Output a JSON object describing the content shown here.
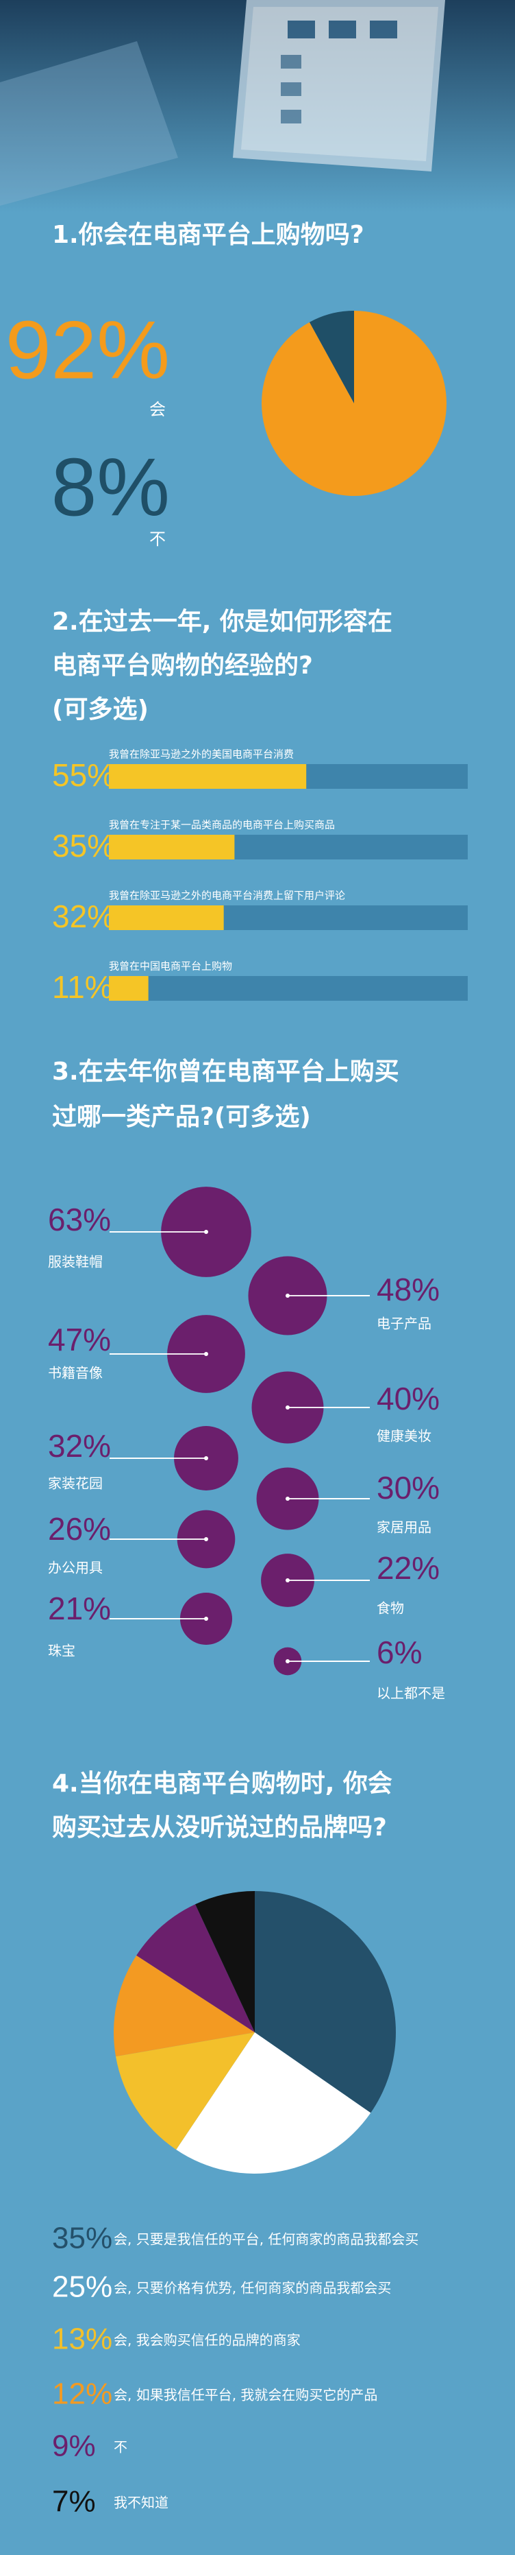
{
  "chart_data": [
    {
      "type": "pie",
      "title": "1.你会在电商平台上购物吗?",
      "categories": [
        "会",
        "不"
      ],
      "values": [
        92,
        8
      ],
      "value_labels": [
        "92%",
        "8%"
      ],
      "colors": [
        "#f49b1c",
        "#1f4f67"
      ]
    },
    {
      "type": "hbar",
      "title": [
        "2.在过去一年, 你是如何形容在",
        "电商平台购物的经验的?",
        "(可多选)"
      ],
      "categories": [
        "我曾在除亚马逊之外的美国电商平台消费",
        "我曾在专注于某一品类商品的电商平台上购买商品",
        "我曾在除亚马逊之外的电商平台消费上留下用户评论",
        "我曾在中国电商平台上购物"
      ],
      "values": [
        55,
        35,
        32,
        11
      ],
      "value_labels": [
        "55%",
        "35%",
        "32%",
        "11%"
      ],
      "xlim": [
        0,
        100
      ],
      "color": "#f5c526"
    },
    {
      "type": "bubble",
      "title": [
        "3.在去年你曾在电商平台上购买",
        "过哪一类产品?(可多选)"
      ],
      "categories": [
        "服装鞋帽",
        "电子产品",
        "书籍音像",
        "健康美妆",
        "家装花园",
        "家居用品",
        "办公用具",
        "食物",
        "珠宝",
        "以上都不是"
      ],
      "values": [
        63,
        48,
        47,
        40,
        32,
        30,
        26,
        22,
        21,
        6
      ],
      "value_labels": [
        "63%",
        "48%",
        "47%",
        "40%",
        "32%",
        "30%",
        "26%",
        "22%",
        "21%",
        "6%"
      ],
      "color": "#6b1f6c"
    },
    {
      "type": "pie",
      "title": [
        "4.当你在电商平台购物时, 你会",
        "购买过去从没听说过的品牌吗?"
      ],
      "categories": [
        "会, 只要是我信任的平台, 任何商家的商品我都会买",
        "会, 只要价格有优势, 任何商家的商品我都会买",
        "会, 我会购买信任的品牌的商家",
        "会, 如果我信任平台, 我就会在购买它的产品",
        "不",
        "我不知道"
      ],
      "values": [
        35,
        25,
        13,
        12,
        9,
        7
      ],
      "value_labels": [
        "35%",
        "25%",
        "13%",
        "12%",
        "9%",
        "7%"
      ],
      "colors": [
        "#24506a",
        "#ffffff",
        "#f3c02b",
        "#f39a22",
        "#6b1f6c",
        "#111111"
      ]
    }
  ]
}
